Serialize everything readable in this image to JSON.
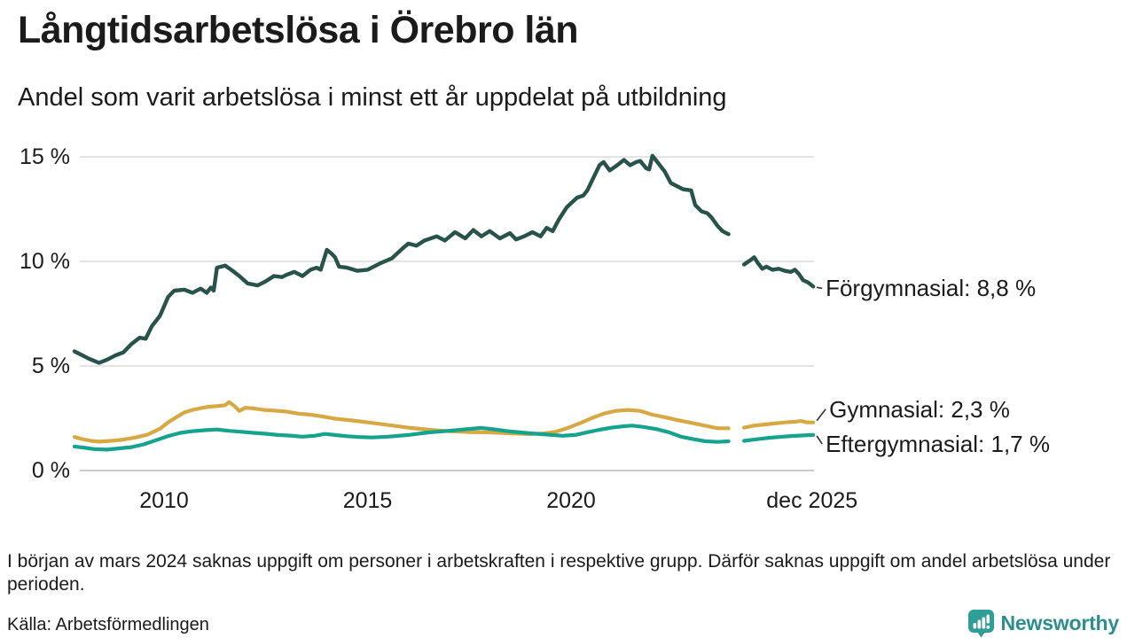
{
  "page": {
    "title": "Långtidsarbetslösa i Örebro län",
    "subtitle": "Andel som varit arbetslösa i minst ett år uppdelat på utbildning",
    "footnote": "I början av mars 2024 saknas uppgift om personer i arbetskraften i respektive grupp. Därför saknas uppgift om andel arbetslösa under perioden.",
    "source": "Källa: Arbetsförmedlingen",
    "brand": "Newsworthy"
  },
  "colors": {
    "text": "#1b1b1b",
    "gridline": "#e3e3e3",
    "zero_line": "#cbcbcb",
    "connector": "#333333",
    "brand_teal": "#2b8f8d",
    "brand_icon": "#2f9e97"
  },
  "chart_data": {
    "type": "line",
    "title": "Långtidsarbetslösa i Örebro län",
    "subtitle": "Andel som varit arbetslösa i minst ett år uppdelat på utbildning",
    "x_unit": "decimal year (monthly data, jan 2008 – dec 2025)",
    "y_unit": "percent",
    "xlim": [
      2007.8,
      2025.95
    ],
    "ylim": [
      0,
      15
    ],
    "grid": "horizontal-only",
    "legend_position": "right-end-labels",
    "data_gap": "early 2024 (no labour-force data, lines broken)",
    "y_ticks": [
      {
        "value": 0,
        "label": "0 %"
      },
      {
        "value": 5,
        "label": "5 %"
      },
      {
        "value": 10,
        "label": "10 %"
      },
      {
        "value": 15,
        "label": "15 %"
      }
    ],
    "x_ticks": [
      {
        "value": 2010,
        "label": "2010"
      },
      {
        "value": 2015,
        "label": "2015"
      },
      {
        "value": 2020,
        "label": "2020"
      },
      {
        "value": 2025.92,
        "label": "dec 2025"
      }
    ],
    "series": [
      {
        "name": "Förgymnasial",
        "label": "Förgymnasial: 8,8 %",
        "end_value": 8.8,
        "color": "#27534a",
        "stroke_width": 4.4,
        "label_dy": 2,
        "label_dx": 14,
        "points": [
          [
            2007.8,
            5.7
          ],
          [
            2007.95,
            5.55
          ],
          [
            2008.15,
            5.35
          ],
          [
            2008.4,
            5.15
          ],
          [
            2008.6,
            5.3
          ],
          [
            2008.8,
            5.5
          ],
          [
            2009.0,
            5.65
          ],
          [
            2009.2,
            6.05
          ],
          [
            2009.4,
            6.35
          ],
          [
            2009.55,
            6.3
          ],
          [
            2009.7,
            6.9
          ],
          [
            2009.9,
            7.4
          ],
          [
            2010.0,
            7.85
          ],
          [
            2010.1,
            8.3
          ],
          [
            2010.25,
            8.6
          ],
          [
            2010.5,
            8.65
          ],
          [
            2010.7,
            8.5
          ],
          [
            2010.9,
            8.7
          ],
          [
            2011.05,
            8.5
          ],
          [
            2011.15,
            8.75
          ],
          [
            2011.22,
            8.6
          ],
          [
            2011.3,
            9.7
          ],
          [
            2011.5,
            9.8
          ],
          [
            2011.65,
            9.6
          ],
          [
            2011.85,
            9.3
          ],
          [
            2012.05,
            8.95
          ],
          [
            2012.3,
            8.85
          ],
          [
            2012.5,
            9.05
          ],
          [
            2012.7,
            9.3
          ],
          [
            2012.9,
            9.25
          ],
          [
            2013.0,
            9.35
          ],
          [
            2013.2,
            9.5
          ],
          [
            2013.4,
            9.3
          ],
          [
            2013.6,
            9.6
          ],
          [
            2013.75,
            9.7
          ],
          [
            2013.85,
            9.6
          ],
          [
            2014.0,
            10.55
          ],
          [
            2014.1,
            10.4
          ],
          [
            2014.2,
            10.2
          ],
          [
            2014.3,
            9.75
          ],
          [
            2014.5,
            9.7
          ],
          [
            2014.75,
            9.55
          ],
          [
            2015.0,
            9.6
          ],
          [
            2015.3,
            9.9
          ],
          [
            2015.6,
            10.15
          ],
          [
            2015.85,
            10.6
          ],
          [
            2016.0,
            10.85
          ],
          [
            2016.2,
            10.75
          ],
          [
            2016.4,
            11.0
          ],
          [
            2016.7,
            11.2
          ],
          [
            2016.9,
            11.0
          ],
          [
            2017.15,
            11.4
          ],
          [
            2017.4,
            11.1
          ],
          [
            2017.6,
            11.5
          ],
          [
            2017.8,
            11.2
          ],
          [
            2018.0,
            11.45
          ],
          [
            2018.25,
            11.1
          ],
          [
            2018.5,
            11.35
          ],
          [
            2018.65,
            11.05
          ],
          [
            2018.85,
            11.2
          ],
          [
            2019.05,
            11.4
          ],
          [
            2019.25,
            11.2
          ],
          [
            2019.4,
            11.6
          ],
          [
            2019.55,
            11.45
          ],
          [
            2019.7,
            12.0
          ],
          [
            2019.9,
            12.6
          ],
          [
            2020.15,
            13.05
          ],
          [
            2020.3,
            13.15
          ],
          [
            2020.4,
            13.4
          ],
          [
            2020.6,
            14.2
          ],
          [
            2020.7,
            14.6
          ],
          [
            2020.8,
            14.75
          ],
          [
            2020.95,
            14.35
          ],
          [
            2021.1,
            14.55
          ],
          [
            2021.3,
            14.85
          ],
          [
            2021.45,
            14.6
          ],
          [
            2021.6,
            14.75
          ],
          [
            2021.7,
            14.8
          ],
          [
            2021.85,
            14.45
          ],
          [
            2021.92,
            14.4
          ],
          [
            2022.0,
            15.05
          ],
          [
            2022.1,
            14.8
          ],
          [
            2022.3,
            14.3
          ],
          [
            2022.45,
            13.75
          ],
          [
            2022.6,
            13.6
          ],
          [
            2022.75,
            13.45
          ],
          [
            2022.95,
            13.4
          ],
          [
            2023.05,
            12.7
          ],
          [
            2023.2,
            12.4
          ],
          [
            2023.35,
            12.3
          ],
          [
            2023.45,
            12.1
          ],
          [
            2023.6,
            11.7
          ],
          [
            2023.72,
            11.45
          ],
          [
            2023.87,
            11.3
          ],
          null,
          [
            2024.25,
            9.85
          ],
          [
            2024.4,
            10.05
          ],
          [
            2024.5,
            10.2
          ],
          [
            2024.6,
            9.9
          ],
          [
            2024.7,
            9.65
          ],
          [
            2024.8,
            9.75
          ],
          [
            2024.95,
            9.6
          ],
          [
            2025.1,
            9.65
          ],
          [
            2025.25,
            9.55
          ],
          [
            2025.4,
            9.5
          ],
          [
            2025.5,
            9.6
          ],
          [
            2025.6,
            9.4
          ],
          [
            2025.7,
            9.1
          ],
          [
            2025.82,
            9.0
          ],
          [
            2025.95,
            8.8
          ]
        ]
      },
      {
        "name": "Gymnasial",
        "label": "Gymnasial: 2,3 %",
        "end_value": 2.3,
        "color": "#d8a845",
        "stroke_width": 4.2,
        "label_dy": -15,
        "label_dx": 18,
        "points": [
          [
            2007.8,
            1.6
          ],
          [
            2008.0,
            1.5
          ],
          [
            2008.2,
            1.42
          ],
          [
            2008.4,
            1.38
          ],
          [
            2008.7,
            1.42
          ],
          [
            2009.0,
            1.48
          ],
          [
            2009.3,
            1.58
          ],
          [
            2009.6,
            1.72
          ],
          [
            2009.9,
            2.0
          ],
          [
            2010.1,
            2.3
          ],
          [
            2010.3,
            2.55
          ],
          [
            2010.5,
            2.78
          ],
          [
            2010.7,
            2.9
          ],
          [
            2010.9,
            2.98
          ],
          [
            2011.1,
            3.05
          ],
          [
            2011.3,
            3.08
          ],
          [
            2011.5,
            3.12
          ],
          [
            2011.6,
            3.27
          ],
          [
            2011.72,
            3.1
          ],
          [
            2011.85,
            2.85
          ],
          [
            2012.0,
            3.0
          ],
          [
            2012.2,
            2.97
          ],
          [
            2012.45,
            2.9
          ],
          [
            2012.7,
            2.87
          ],
          [
            2013.0,
            2.82
          ],
          [
            2013.3,
            2.72
          ],
          [
            2013.6,
            2.67
          ],
          [
            2013.9,
            2.58
          ],
          [
            2014.2,
            2.48
          ],
          [
            2014.5,
            2.42
          ],
          [
            2014.8,
            2.35
          ],
          [
            2015.1,
            2.28
          ],
          [
            2015.5,
            2.18
          ],
          [
            2016.0,
            2.05
          ],
          [
            2016.5,
            1.95
          ],
          [
            2017.0,
            1.88
          ],
          [
            2017.5,
            1.84
          ],
          [
            2018.0,
            1.82
          ],
          [
            2018.5,
            1.78
          ],
          [
            2019.0,
            1.74
          ],
          [
            2019.3,
            1.77
          ],
          [
            2019.6,
            1.84
          ],
          [
            2019.9,
            2.02
          ],
          [
            2020.2,
            2.25
          ],
          [
            2020.5,
            2.5
          ],
          [
            2020.8,
            2.72
          ],
          [
            2021.1,
            2.85
          ],
          [
            2021.4,
            2.9
          ],
          [
            2021.7,
            2.85
          ],
          [
            2022.0,
            2.67
          ],
          [
            2022.3,
            2.55
          ],
          [
            2022.6,
            2.42
          ],
          [
            2022.9,
            2.3
          ],
          [
            2023.15,
            2.2
          ],
          [
            2023.4,
            2.1
          ],
          [
            2023.6,
            2.02
          ],
          [
            2023.87,
            2.02
          ],
          null,
          [
            2024.25,
            2.05
          ],
          [
            2024.5,
            2.15
          ],
          [
            2024.75,
            2.2
          ],
          [
            2025.0,
            2.25
          ],
          [
            2025.25,
            2.3
          ],
          [
            2025.5,
            2.33
          ],
          [
            2025.65,
            2.37
          ],
          [
            2025.8,
            2.3
          ],
          [
            2025.95,
            2.3
          ]
        ]
      },
      {
        "name": "Eftergymnasial",
        "label": "Eftergymnasial: 1,7 %",
        "end_value": 1.7,
        "color": "#16a38e",
        "stroke_width": 4.2,
        "label_dy": 10,
        "label_dx": 14,
        "points": [
          [
            2007.8,
            1.15
          ],
          [
            2008.0,
            1.1
          ],
          [
            2008.3,
            1.02
          ],
          [
            2008.6,
            1.0
          ],
          [
            2008.9,
            1.06
          ],
          [
            2009.2,
            1.12
          ],
          [
            2009.5,
            1.25
          ],
          [
            2009.8,
            1.45
          ],
          [
            2010.1,
            1.65
          ],
          [
            2010.4,
            1.8
          ],
          [
            2010.7,
            1.88
          ],
          [
            2011.0,
            1.93
          ],
          [
            2011.3,
            1.96
          ],
          [
            2011.6,
            1.9
          ],
          [
            2011.9,
            1.85
          ],
          [
            2012.2,
            1.8
          ],
          [
            2012.5,
            1.76
          ],
          [
            2012.8,
            1.7
          ],
          [
            2013.1,
            1.67
          ],
          [
            2013.4,
            1.62
          ],
          [
            2013.7,
            1.66
          ],
          [
            2013.95,
            1.75
          ],
          [
            2014.2,
            1.7
          ],
          [
            2014.5,
            1.64
          ],
          [
            2014.8,
            1.6
          ],
          [
            2015.1,
            1.58
          ],
          [
            2015.5,
            1.62
          ],
          [
            2016.0,
            1.7
          ],
          [
            2016.5,
            1.82
          ],
          [
            2017.0,
            1.9
          ],
          [
            2017.4,
            1.97
          ],
          [
            2017.8,
            2.04
          ],
          [
            2018.1,
            1.97
          ],
          [
            2018.5,
            1.87
          ],
          [
            2019.0,
            1.78
          ],
          [
            2019.4,
            1.72
          ],
          [
            2019.8,
            1.66
          ],
          [
            2020.1,
            1.7
          ],
          [
            2020.4,
            1.83
          ],
          [
            2020.7,
            1.95
          ],
          [
            2021.0,
            2.05
          ],
          [
            2021.3,
            2.12
          ],
          [
            2021.5,
            2.15
          ],
          [
            2021.8,
            2.08
          ],
          [
            2022.1,
            1.98
          ],
          [
            2022.4,
            1.83
          ],
          [
            2022.7,
            1.62
          ],
          [
            2023.0,
            1.5
          ],
          [
            2023.3,
            1.4
          ],
          [
            2023.6,
            1.37
          ],
          [
            2023.87,
            1.4
          ],
          null,
          [
            2024.25,
            1.42
          ],
          [
            2024.5,
            1.48
          ],
          [
            2024.8,
            1.55
          ],
          [
            2025.1,
            1.6
          ],
          [
            2025.4,
            1.65
          ],
          [
            2025.7,
            1.68
          ],
          [
            2025.95,
            1.7
          ]
        ]
      }
    ]
  }
}
